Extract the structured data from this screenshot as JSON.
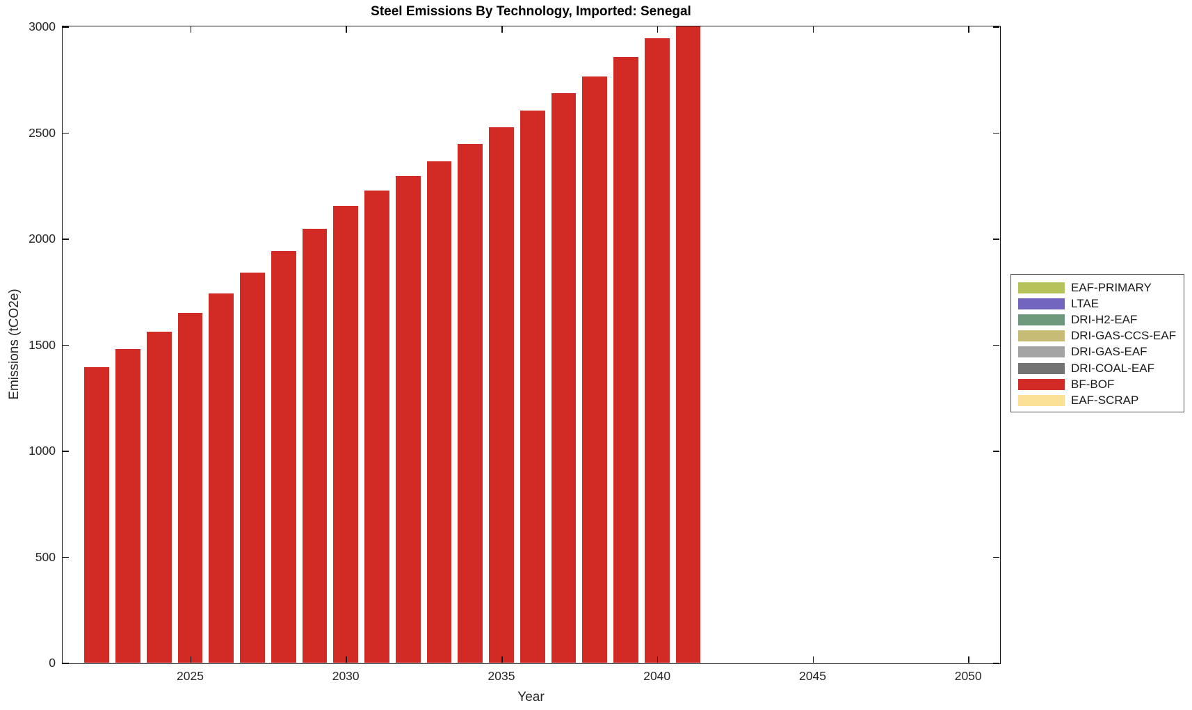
{
  "title": "Steel Emissions By Technology, Imported: Senegal",
  "axes": {
    "xlabel": "Year",
    "ylabel": "Emissions (tCO2e)"
  },
  "chart_data": {
    "type": "bar",
    "stacked": true,
    "title": "Steel Emissions By Technology, Imported: Senegal",
    "xlabel": "Year",
    "ylabel": "Emissions (tCO2e)",
    "xlim": [
      2020.9,
      2051.0
    ],
    "ylim": [
      0,
      3000
    ],
    "xticks": [
      2025,
      2030,
      2035,
      2040,
      2045,
      2050
    ],
    "yticks": [
      0,
      500,
      1000,
      1500,
      2000,
      2500,
      3000
    ],
    "bar_width_years": 0.8,
    "grid": false,
    "legend_position": "outside-right",
    "note": "Only BF-BOF bars are visible; all other technology series are zero. The 2041 bar exceeds the y-axis maximum and is clipped at 3000.",
    "x": [
      2022,
      2023,
      2024,
      2025,
      2026,
      2027,
      2028,
      2029,
      2030,
      2031,
      2032,
      2033,
      2034,
      2035,
      2036,
      2037,
      2038,
      2039,
      2040,
      2041
    ],
    "series": [
      {
        "name": "EAF-PRIMARY",
        "color": "#b6c35a",
        "values": [
          0,
          0,
          0,
          0,
          0,
          0,
          0,
          0,
          0,
          0,
          0,
          0,
          0,
          0,
          0,
          0,
          0,
          0,
          0,
          0
        ]
      },
      {
        "name": "LTAE",
        "color": "#7165be",
        "values": [
          0,
          0,
          0,
          0,
          0,
          0,
          0,
          0,
          0,
          0,
          0,
          0,
          0,
          0,
          0,
          0,
          0,
          0,
          0,
          0
        ]
      },
      {
        "name": "DRI-H2-EAF",
        "color": "#6e997c",
        "values": [
          0,
          0,
          0,
          0,
          0,
          0,
          0,
          0,
          0,
          0,
          0,
          0,
          0,
          0,
          0,
          0,
          0,
          0,
          0,
          0
        ]
      },
      {
        "name": "DRI-GAS-CCS-EAF",
        "color": "#c6bc76",
        "values": [
          0,
          0,
          0,
          0,
          0,
          0,
          0,
          0,
          0,
          0,
          0,
          0,
          0,
          0,
          0,
          0,
          0,
          0,
          0,
          0
        ]
      },
      {
        "name": "DRI-GAS-EAF",
        "color": "#a4a4a4",
        "values": [
          0,
          0,
          0,
          0,
          0,
          0,
          0,
          0,
          0,
          0,
          0,
          0,
          0,
          0,
          0,
          0,
          0,
          0,
          0,
          0
        ]
      },
      {
        "name": "DRI-COAL-EAF",
        "color": "#737373",
        "values": [
          0,
          0,
          0,
          0,
          0,
          0,
          0,
          0,
          0,
          0,
          0,
          0,
          0,
          0,
          0,
          0,
          0,
          0,
          0,
          0
        ]
      },
      {
        "name": "BF-BOF",
        "color": "#d22b25",
        "values": [
          1395,
          1480,
          1560,
          1650,
          1740,
          1840,
          1940,
          2045,
          2155,
          2225,
          2295,
          2365,
          2445,
          2525,
          2605,
          2685,
          2765,
          2855,
          2945,
          3035
        ]
      },
      {
        "name": "EAF-SCRAP",
        "color": "#fbe098",
        "values": [
          0,
          0,
          0,
          0,
          0,
          0,
          0,
          0,
          0,
          0,
          0,
          0,
          0,
          0,
          0,
          0,
          0,
          0,
          0,
          0
        ]
      }
    ],
    "colors": {
      "bar_fill": "#d22b25",
      "axis_line": "#141414",
      "tick_text": "#262626",
      "title_text": "#000000"
    }
  }
}
